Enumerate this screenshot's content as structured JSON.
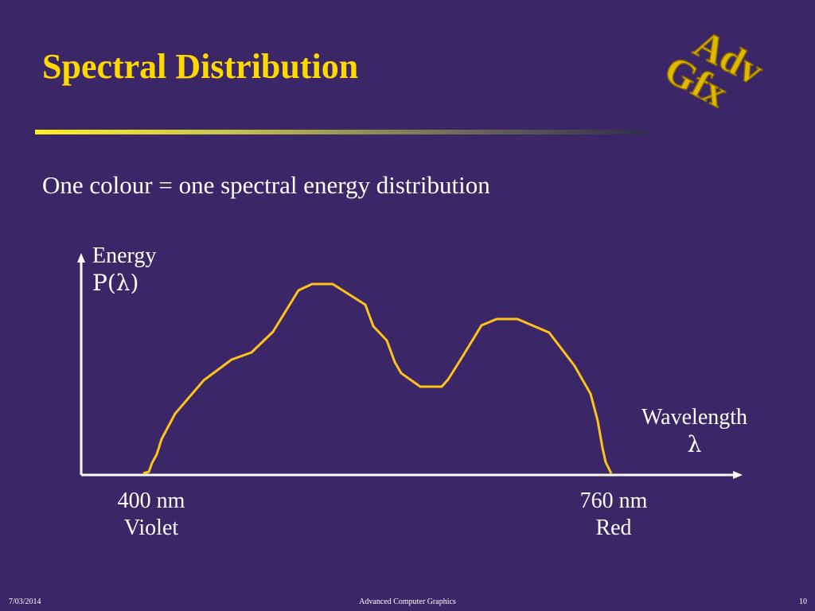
{
  "slide": {
    "title": "Spectral Distribution",
    "subtitle": "One colour = one spectral energy distribution",
    "logo_text": [
      "Adv",
      "Gfx"
    ]
  },
  "chart_data": {
    "type": "line",
    "ylabel_lines": [
      "Energy",
      "P(λ)"
    ],
    "xlabel_lines": [
      "Wavelength",
      "λ"
    ],
    "x_tick_labels": [
      {
        "lines": [
          "400 nm",
          "Violet"
        ]
      },
      {
        "lines": [
          "760 nm",
          "Red"
        ]
      }
    ],
    "grid": false,
    "curve_color": "#ffc21a",
    "axis_color": "#ffffff"
  },
  "footer": {
    "date": "7/03/2014",
    "course": "Advanced Computer Graphics",
    "page": "10"
  },
  "colors": {
    "background": "#3b2668",
    "title": "#ffd800",
    "text": "#ffffff"
  }
}
